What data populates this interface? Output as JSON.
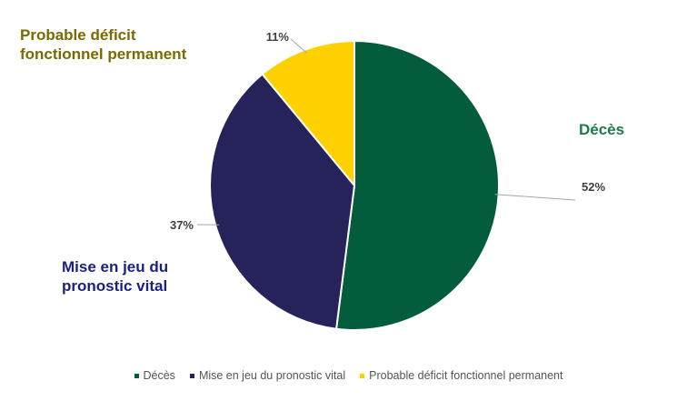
{
  "chart_data": {
    "type": "pie",
    "categories": [
      "Décès",
      "Mise en jeu du pronostic vital",
      "Probable déficit fonctionnel permanent"
    ],
    "values": [
      52,
      37,
      11
    ],
    "value_labels": [
      "52%",
      "37%",
      "11%"
    ],
    "colors": [
      "#035C3C",
      "#26225A",
      "#FFD100"
    ],
    "outer_labels": [
      {
        "text": "Décès",
        "color": "#1C7A4C"
      },
      {
        "text": "Mise en jeu du pronostic vital",
        "color": "#1B1F86"
      },
      {
        "text": "Probable déficit fonctionnel permanent",
        "color": "#7A6A00"
      }
    ],
    "legend_position": "bottom",
    "legend": [
      "Décès",
      "Mise en jeu du pronostic vital",
      "Probable déficit fonctionnel permanent"
    ]
  }
}
